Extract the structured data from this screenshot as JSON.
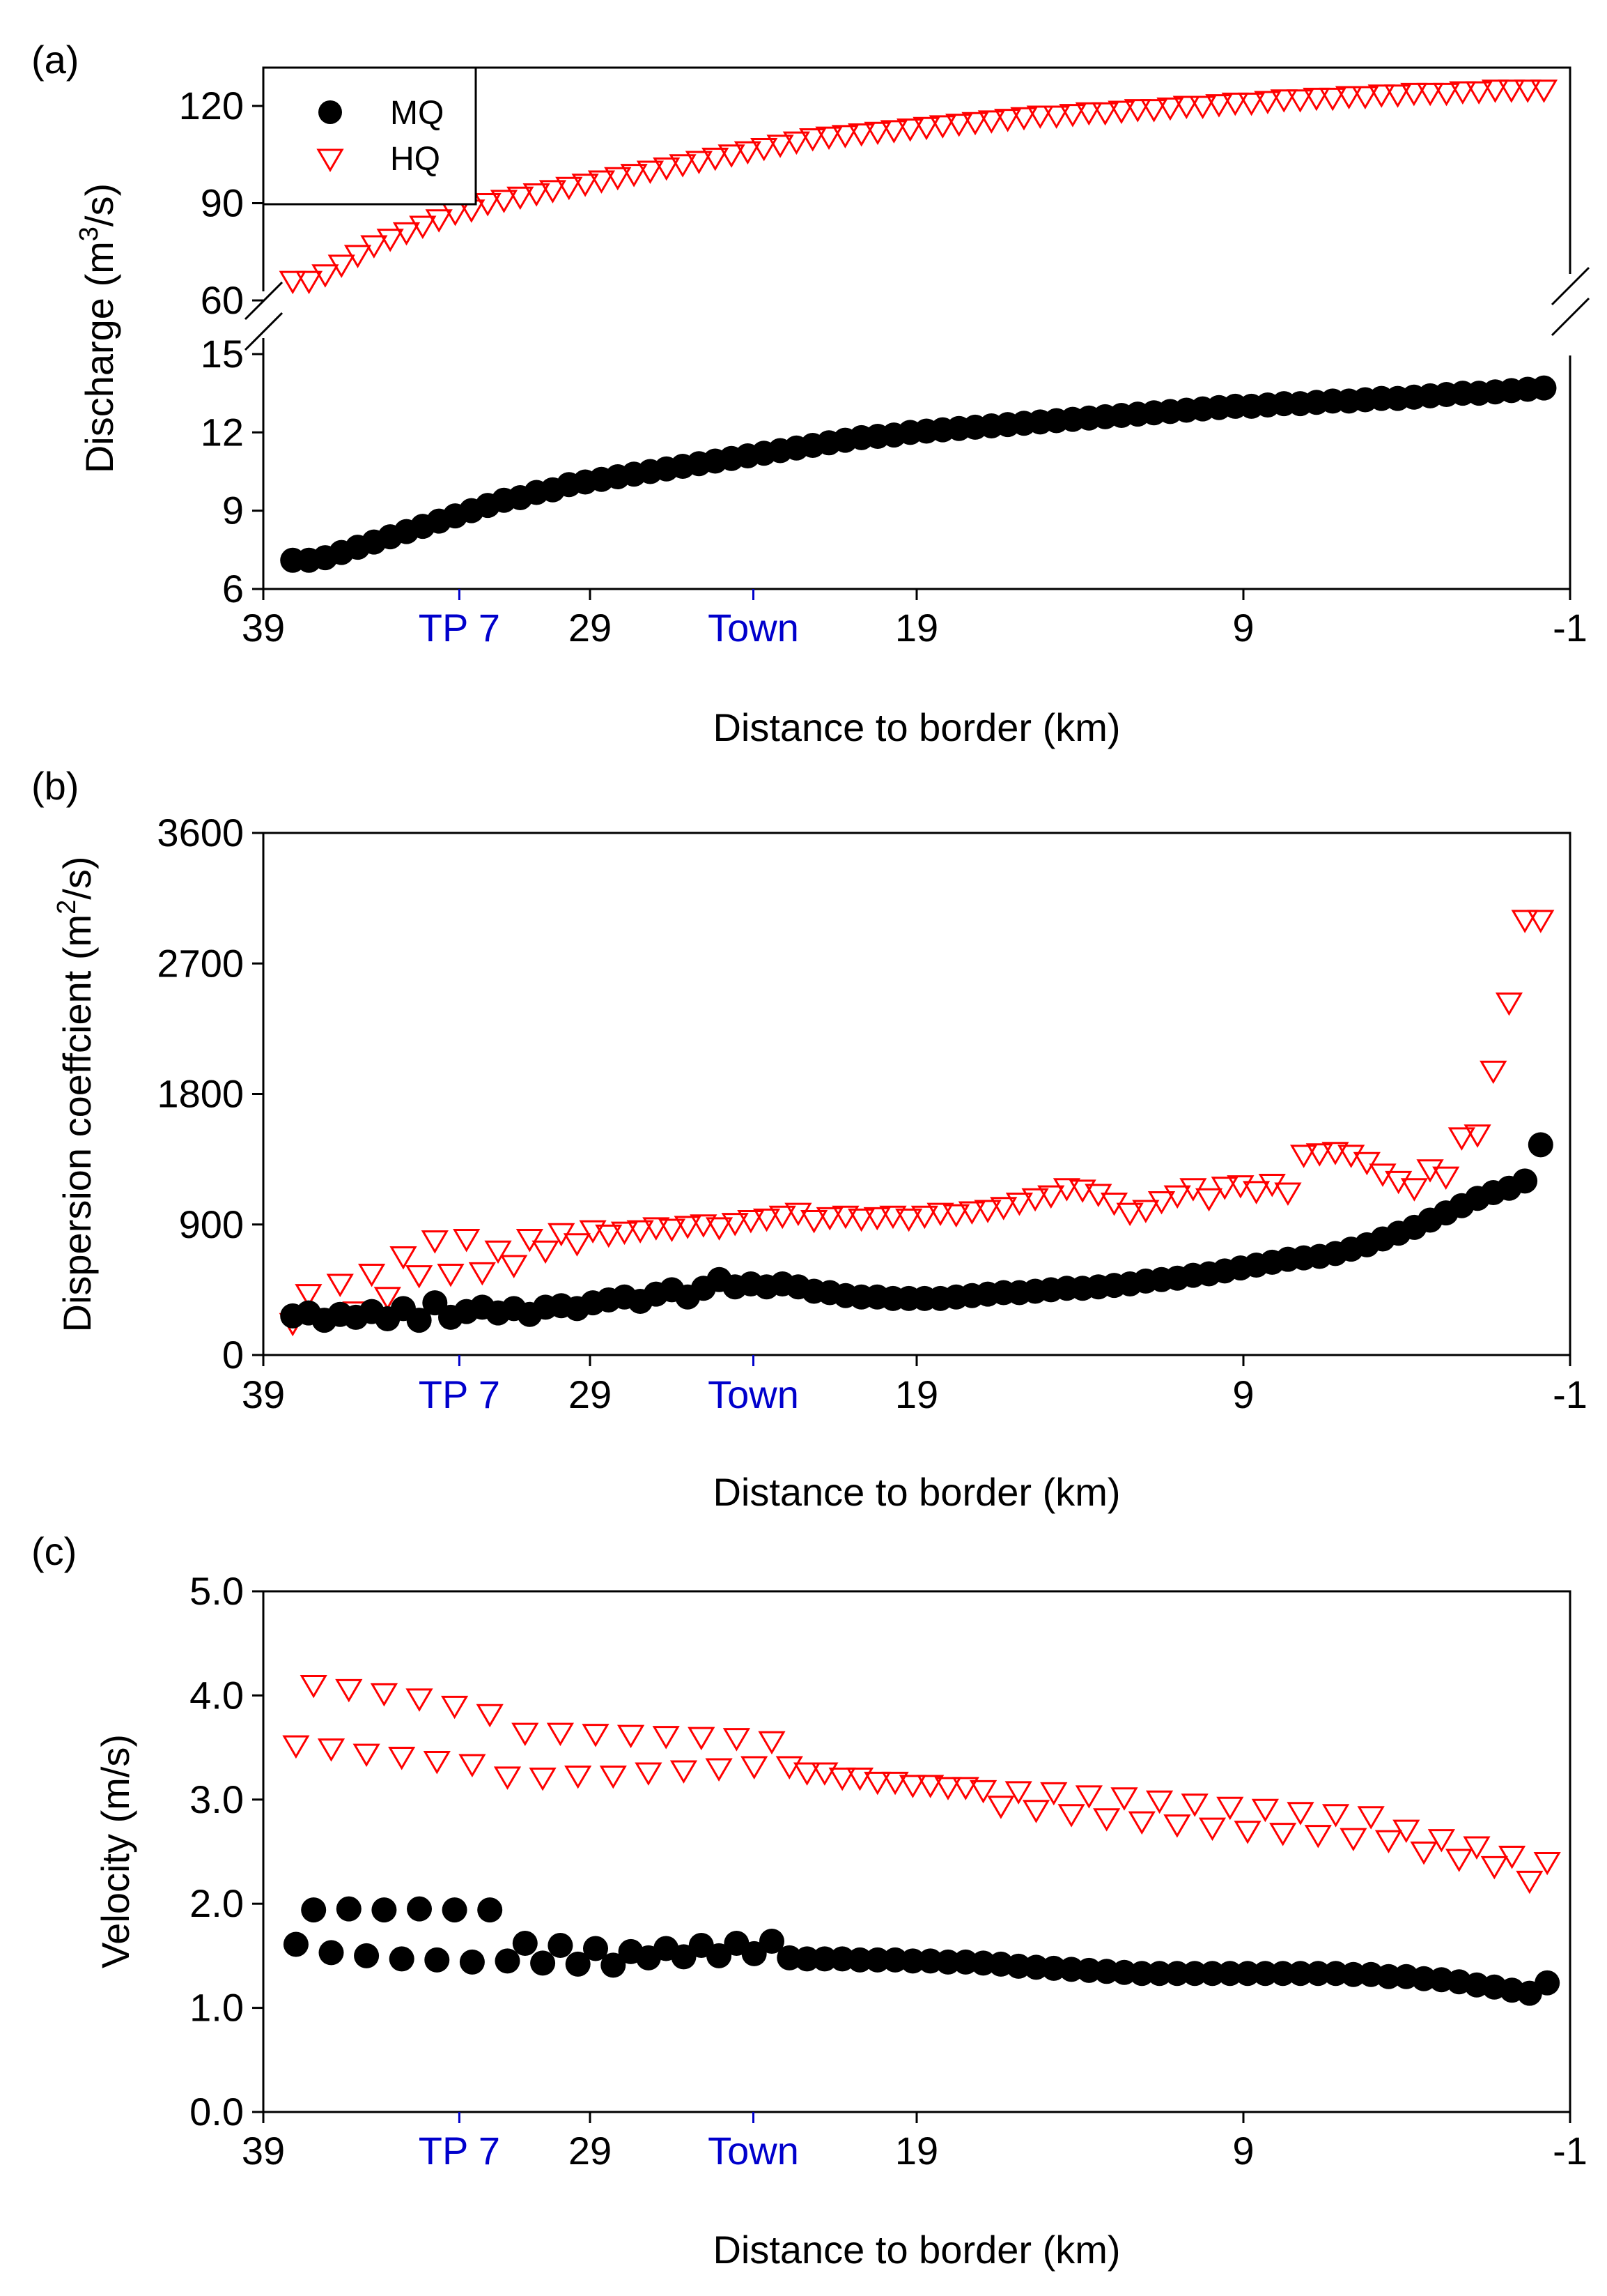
{
  "colors": {
    "mq": "#000000",
    "hq": "#ff0000",
    "landmark": "#0000cc"
  },
  "chart_data": [
    {
      "panel": "(a)",
      "type": "scatter",
      "xlabel": "Distance to border (km)",
      "ylabel_prefix": "Discharge (m",
      "ylabel_sup": "3",
      "ylabel_suffix": "/s)",
      "xlim": [
        39,
        -1
      ],
      "x_ticks": [
        {
          "v": 39,
          "label": "39"
        },
        {
          "v": 29,
          "label": "29"
        },
        {
          "v": 19,
          "label": "19"
        },
        {
          "v": 9,
          "label": "9"
        },
        {
          "v": -1,
          "label": "-1"
        }
      ],
      "landmarks": [
        {
          "v": 33,
          "label": "TP 7"
        },
        {
          "v": 24,
          "label": "Town"
        }
      ],
      "broken_axis": true,
      "upper_ylim": [
        60,
        130
      ],
      "upper_ticks": [
        {
          "v": 60,
          "label": "60"
        },
        {
          "v": 90,
          "label": "90"
        },
        {
          "v": 120,
          "label": "120"
        }
      ],
      "lower_ylim": [
        6,
        15
      ],
      "lower_ticks": [
        {
          "v": 6,
          "label": "6"
        },
        {
          "v": 9,
          "label": "9"
        },
        {
          "v": 12,
          "label": "12"
        },
        {
          "v": 15,
          "label": "15"
        }
      ],
      "legend": [
        {
          "name": "MQ",
          "marker": "circle"
        },
        {
          "name": "HQ",
          "marker": "triangle-down"
        }
      ],
      "series": [
        {
          "name": "MQ",
          "x_start": 38.1,
          "x_end": -0.2,
          "n": 78,
          "values": [
            7.1,
            7.1,
            7.2,
            7.4,
            7.6,
            7.8,
            8.0,
            8.2,
            8.4,
            8.6,
            8.8,
            9.0,
            9.2,
            9.4,
            9.5,
            9.7,
            9.8,
            10.0,
            10.1,
            10.2,
            10.3,
            10.4,
            10.5,
            10.6,
            10.7,
            10.8,
            10.9,
            11.0,
            11.1,
            11.2,
            11.3,
            11.4,
            11.5,
            11.6,
            11.7,
            11.8,
            11.85,
            11.9,
            12.0,
            12.05,
            12.1,
            12.15,
            12.2,
            12.25,
            12.3,
            12.35,
            12.4,
            12.45,
            12.5,
            12.55,
            12.6,
            12.65,
            12.7,
            12.75,
            12.8,
            12.85,
            12.9,
            12.95,
            13.0,
            13.0,
            13.05,
            13.1,
            13.1,
            13.15,
            13.2,
            13.2,
            13.25,
            13.3,
            13.3,
            13.35,
            13.4,
            13.45,
            13.5,
            13.5,
            13.55,
            13.6,
            13.65,
            13.7
          ]
        },
        {
          "name": "HQ",
          "x_start": 38.1,
          "x_end": -0.2,
          "n": 78,
          "values": [
            66,
            66,
            68,
            71,
            74,
            77,
            79,
            81,
            83,
            85,
            87,
            88,
            90,
            91,
            92,
            93,
            94,
            95,
            96,
            97,
            98,
            99,
            100,
            101,
            102,
            103,
            104,
            105,
            106,
            107,
            108,
            109,
            110,
            110.5,
            111,
            111.5,
            112,
            112.5,
            113,
            113.5,
            114,
            114.5,
            115,
            115.5,
            116,
            116.5,
            117,
            117,
            117.5,
            118,
            118,
            118.5,
            119,
            119,
            119.5,
            120,
            120,
            120.5,
            121,
            121,
            121.5,
            122,
            122,
            122.5,
            122.5,
            123,
            123,
            123.5,
            123.5,
            124,
            124,
            124,
            124.5,
            124.5,
            125,
            125,
            125,
            125
          ]
        }
      ]
    },
    {
      "panel": "(b)",
      "type": "scatter",
      "xlabel": "Distance to border (km)",
      "ylabel_prefix": "Dispersion coeffcient (m",
      "ylabel_sup": "2",
      "ylabel_suffix": "/s)",
      "xlim": [
        39,
        -1
      ],
      "ylim": [
        0,
        3600
      ],
      "x_ticks": [
        {
          "v": 39,
          "label": "39"
        },
        {
          "v": 29,
          "label": "29"
        },
        {
          "v": 19,
          "label": "19"
        },
        {
          "v": 9,
          "label": "9"
        },
        {
          "v": -1,
          "label": "-1"
        }
      ],
      "landmarks": [
        {
          "v": 33,
          "label": "TP 7"
        },
        {
          "v": 24,
          "label": "Town"
        }
      ],
      "y_ticks": [
        {
          "v": 0,
          "label": "0"
        },
        {
          "v": 900,
          "label": "900"
        },
        {
          "v": 1800,
          "label": "1800"
        },
        {
          "v": 2700,
          "label": "2700"
        },
        {
          "v": 3600,
          "label": "3600"
        }
      ],
      "series": [
        {
          "name": "MQ",
          "x_start": 38.1,
          "x_end": -0.1,
          "n": 80,
          "values": [
            270,
            290,
            240,
            280,
            260,
            300,
            250,
            320,
            240,
            360,
            260,
            300,
            330,
            290,
            320,
            280,
            330,
            340,
            320,
            360,
            380,
            400,
            370,
            420,
            450,
            400,
            460,
            520,
            470,
            490,
            470,
            490,
            470,
            440,
            430,
            410,
            400,
            400,
            390,
            390,
            390,
            390,
            400,
            410,
            420,
            430,
            430,
            440,
            450,
            460,
            460,
            470,
            480,
            490,
            510,
            520,
            530,
            550,
            560,
            580,
            600,
            620,
            640,
            660,
            670,
            680,
            700,
            730,
            760,
            800,
            840,
            880,
            930,
            980,
            1030,
            1080,
            1120,
            1150,
            1200,
            1450
          ]
        },
        {
          "name": "HQ",
          "x_start": 38.1,
          "x_end": -0.1,
          "n": 80,
          "values": [
            220,
            420,
            250,
            490,
            300,
            560,
            400,
            680,
            550,
            790,
            560,
            800,
            570,
            720,
            620,
            800,
            720,
            840,
            770,
            860,
            830,
            850,
            860,
            880,
            870,
            890,
            900,
            880,
            910,
            930,
            940,
            960,
            980,
            930,
            950,
            960,
            940,
            950,
            960,
            940,
            960,
            980,
            970,
            990,
            1000,
            1020,
            1050,
            1080,
            1100,
            1150,
            1140,
            1110,
            1050,
            980,
            1000,
            1060,
            1100,
            1150,
            1080,
            1160,
            1170,
            1130,
            1180,
            1120,
            1380,
            1390,
            1400,
            1380,
            1330,
            1250,
            1200,
            1150,
            1280,
            1230,
            1500,
            1520,
            1960,
            2430,
            3000,
            3000
          ]
        }
      ]
    },
    {
      "panel": "(c)",
      "type": "scatter",
      "xlabel": "Distance to border (km)",
      "ylabel": "Velocity (m/s)",
      "xlim": [
        39,
        -1
      ],
      "ylim": [
        0,
        5
      ],
      "x_ticks": [
        {
          "v": 39,
          "label": "39"
        },
        {
          "v": 29,
          "label": "29"
        },
        {
          "v": 19,
          "label": "19"
        },
        {
          "v": 9,
          "label": "9"
        },
        {
          "v": -1,
          "label": "-1"
        }
      ],
      "landmarks": [
        {
          "v": 33,
          "label": "TP 7"
        },
        {
          "v": 24,
          "label": "Town"
        }
      ],
      "y_ticks": [
        {
          "v": 0,
          "label": "0.0"
        },
        {
          "v": 1,
          "label": "1.0"
        },
        {
          "v": 2,
          "label": "2.0"
        },
        {
          "v": 3,
          "label": "3.0"
        },
        {
          "v": 4,
          "label": "4.0"
        },
        {
          "v": 5,
          "label": "5.0"
        }
      ],
      "series": [
        {
          "name": "MQ",
          "x_start": 38.0,
          "x_end": -0.3,
          "n": 72,
          "values": [
            1.61,
            1.94,
            1.53,
            1.95,
            1.5,
            1.94,
            1.47,
            1.95,
            1.46,
            1.94,
            1.44,
            1.94,
            1.45,
            1.62,
            1.43,
            1.6,
            1.42,
            1.57,
            1.41,
            1.54,
            1.48,
            1.57,
            1.49,
            1.6,
            1.5,
            1.62,
            1.52,
            1.64,
            1.48,
            1.47,
            1.47,
            1.47,
            1.46,
            1.46,
            1.46,
            1.45,
            1.45,
            1.44,
            1.44,
            1.43,
            1.42,
            1.4,
            1.39,
            1.38,
            1.37,
            1.36,
            1.35,
            1.34,
            1.33,
            1.33,
            1.33,
            1.33,
            1.33,
            1.33,
            1.33,
            1.33,
            1.33,
            1.33,
            1.33,
            1.33,
            1.32,
            1.32,
            1.3,
            1.3,
            1.28,
            1.27,
            1.25,
            1.22,
            1.2,
            1.17,
            1.14,
            1.24
          ]
        },
        {
          "name": "HQ",
          "x_start": 38.0,
          "x_end": -0.3,
          "n": 72,
          "values": [
            3.52,
            4.1,
            3.49,
            4.06,
            3.44,
            4.02,
            3.41,
            3.97,
            3.37,
            3.9,
            3.34,
            3.82,
            3.22,
            3.64,
            3.21,
            3.64,
            3.23,
            3.63,
            3.23,
            3.62,
            3.26,
            3.61,
            3.28,
            3.6,
            3.3,
            3.59,
            3.32,
            3.56,
            3.32,
            3.26,
            3.26,
            3.21,
            3.21,
            3.17,
            3.17,
            3.14,
            3.14,
            3.12,
            3.12,
            3.09,
            2.94,
            3.08,
            2.9,
            3.07,
            2.86,
            3.04,
            2.82,
            3.02,
            2.79,
            2.99,
            2.76,
            2.96,
            2.73,
            2.93,
            2.7,
            2.91,
            2.68,
            2.88,
            2.66,
            2.86,
            2.63,
            2.84,
            2.61,
            2.71,
            2.5,
            2.62,
            2.43,
            2.55,
            2.36,
            2.46,
            2.22,
            2.4
          ]
        }
      ]
    }
  ]
}
